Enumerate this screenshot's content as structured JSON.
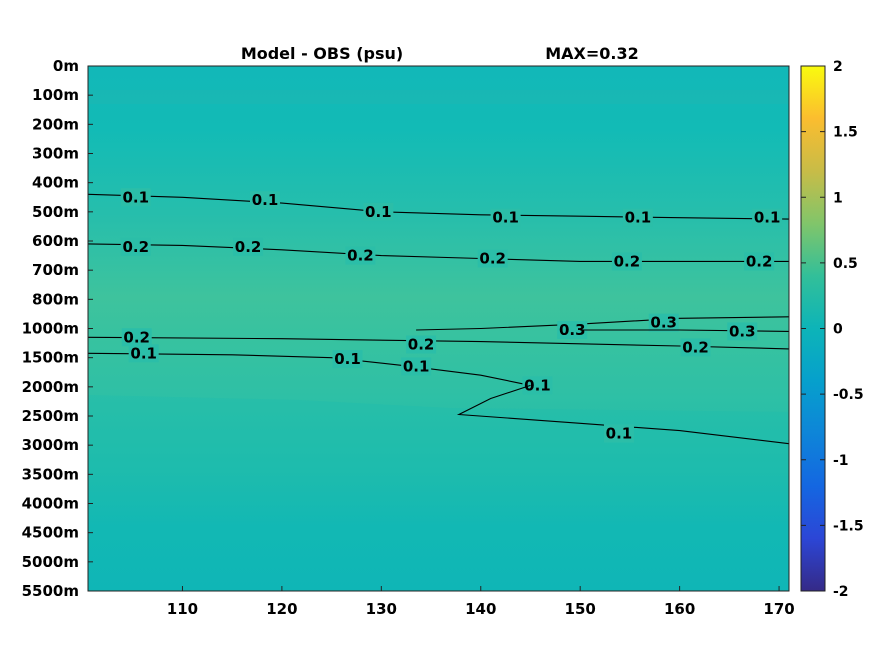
{
  "chart_data": {
    "type": "heatmap",
    "title_left": "Model - OBS (psu)",
    "title_right": "MAX=0.32",
    "x_ticks": [
      "110",
      "120",
      "130",
      "140",
      "150",
      "160",
      "170"
    ],
    "x_range": [
      100.5,
      171
    ],
    "y_ticks": [
      "0m",
      "100m",
      "200m",
      "300m",
      "400m",
      "500m",
      "600m",
      "700m",
      "800m",
      "1000m",
      "1500m",
      "2000m",
      "2500m",
      "3000m",
      "3500m",
      "4000m",
      "4500m",
      "5000m",
      "5500m"
    ],
    "colorbar": {
      "range": [
        -2,
        2
      ],
      "ticks": [
        "2",
        "1.5",
        "1",
        "0.5",
        "0",
        "-0.5",
        "-1",
        "-1.5",
        "-2"
      ],
      "colormap": "parula"
    },
    "contour_lines": [
      {
        "level": 0.1,
        "points": [
          [
            100.5,
            4.4
          ],
          [
            110,
            4.5
          ],
          [
            120,
            4.7
          ],
          [
            130,
            5.0
          ],
          [
            140,
            5.1
          ],
          [
            150,
            5.15
          ],
          [
            160,
            5.2
          ],
          [
            171,
            5.25
          ]
        ],
        "labels": [
          {
            "text": "0.1",
            "x": 105.3,
            "y": 4.5
          },
          {
            "text": "0.1",
            "x": 118.3,
            "y": 4.6
          },
          {
            "text": "0.1",
            "x": 129.7,
            "y": 5.0
          },
          {
            "text": "0.1",
            "x": 142.5,
            "y": 5.2
          },
          {
            "text": "0.1",
            "x": 155.8,
            "y": 5.2
          },
          {
            "text": "0.1",
            "x": 168.8,
            "y": 5.2
          }
        ]
      },
      {
        "level": 0.2,
        "points": [
          [
            100.5,
            6.1
          ],
          [
            110,
            6.15
          ],
          [
            120,
            6.3
          ],
          [
            130,
            6.5
          ],
          [
            140,
            6.6
          ],
          [
            150,
            6.7
          ],
          [
            160,
            6.7
          ],
          [
            171,
            6.7
          ]
        ],
        "labels": [
          {
            "text": "0.2",
            "x": 105.3,
            "y": 6.2
          },
          {
            "text": "0.2",
            "x": 116.6,
            "y": 6.2
          },
          {
            "text": "0.2",
            "x": 127.9,
            "y": 6.5
          },
          {
            "text": "0.2",
            "x": 141.2,
            "y": 6.6
          },
          {
            "text": "0.2",
            "x": 154.7,
            "y": 6.7
          },
          {
            "text": "0.2",
            "x": 168.0,
            "y": 6.7
          }
        ]
      },
      {
        "level": 0.3,
        "points": [
          [
            133.5,
            9.05
          ],
          [
            140,
            9.0
          ],
          [
            150,
            8.85
          ],
          [
            160,
            8.65
          ],
          [
            171,
            8.6
          ]
        ],
        "labels": [
          {
            "text": "0.3",
            "x": 149.2,
            "y": 9.05
          },
          {
            "text": "0.3",
            "x": 158.4,
            "y": 8.8
          }
        ]
      },
      {
        "level": 0.3,
        "points": [
          [
            150,
            9.05
          ],
          [
            160,
            9.05
          ],
          [
            171,
            9.1
          ]
        ],
        "labels": [
          {
            "text": "0.3",
            "x": 166.3,
            "y": 9.1
          }
        ]
      },
      {
        "level": 0.2,
        "points": [
          [
            100.5,
            9.3
          ],
          [
            120,
            9.35
          ],
          [
            140,
            9.45
          ],
          [
            160,
            9.6
          ],
          [
            171,
            9.7
          ]
        ],
        "labels": [
          {
            "text": "0.2",
            "x": 105.4,
            "y": 9.3
          },
          {
            "text": "0.2",
            "x": 134.0,
            "y": 9.55
          },
          {
            "text": "0.2",
            "x": 161.6,
            "y": 9.65
          }
        ]
      },
      {
        "level": 0.1,
        "points": [
          [
            100.5,
            9.85
          ],
          [
            115,
            9.9
          ],
          [
            125,
            10.0
          ],
          [
            133,
            10.3
          ],
          [
            140,
            10.6
          ],
          [
            145,
            10.95
          ]
        ],
        "labels": [
          {
            "text": "0.1",
            "x": 106.1,
            "y": 9.85
          },
          {
            "text": "0.1",
            "x": 126.6,
            "y": 10.05
          },
          {
            "text": "0.1",
            "x": 133.5,
            "y": 10.3
          },
          {
            "text": "0.1",
            "x": 145.7,
            "y": 10.95
          }
        ]
      },
      {
        "level": 0.1,
        "points": [
          [
            145,
            10.95
          ],
          [
            141,
            11.4
          ],
          [
            137.8,
            11.95
          ],
          [
            150,
            12.25
          ],
          [
            160,
            12.5
          ],
          [
            171,
            12.95
          ]
        ],
        "labels": [
          {
            "text": "0.1",
            "x": 153.9,
            "y": 12.6
          }
        ]
      }
    ]
  }
}
